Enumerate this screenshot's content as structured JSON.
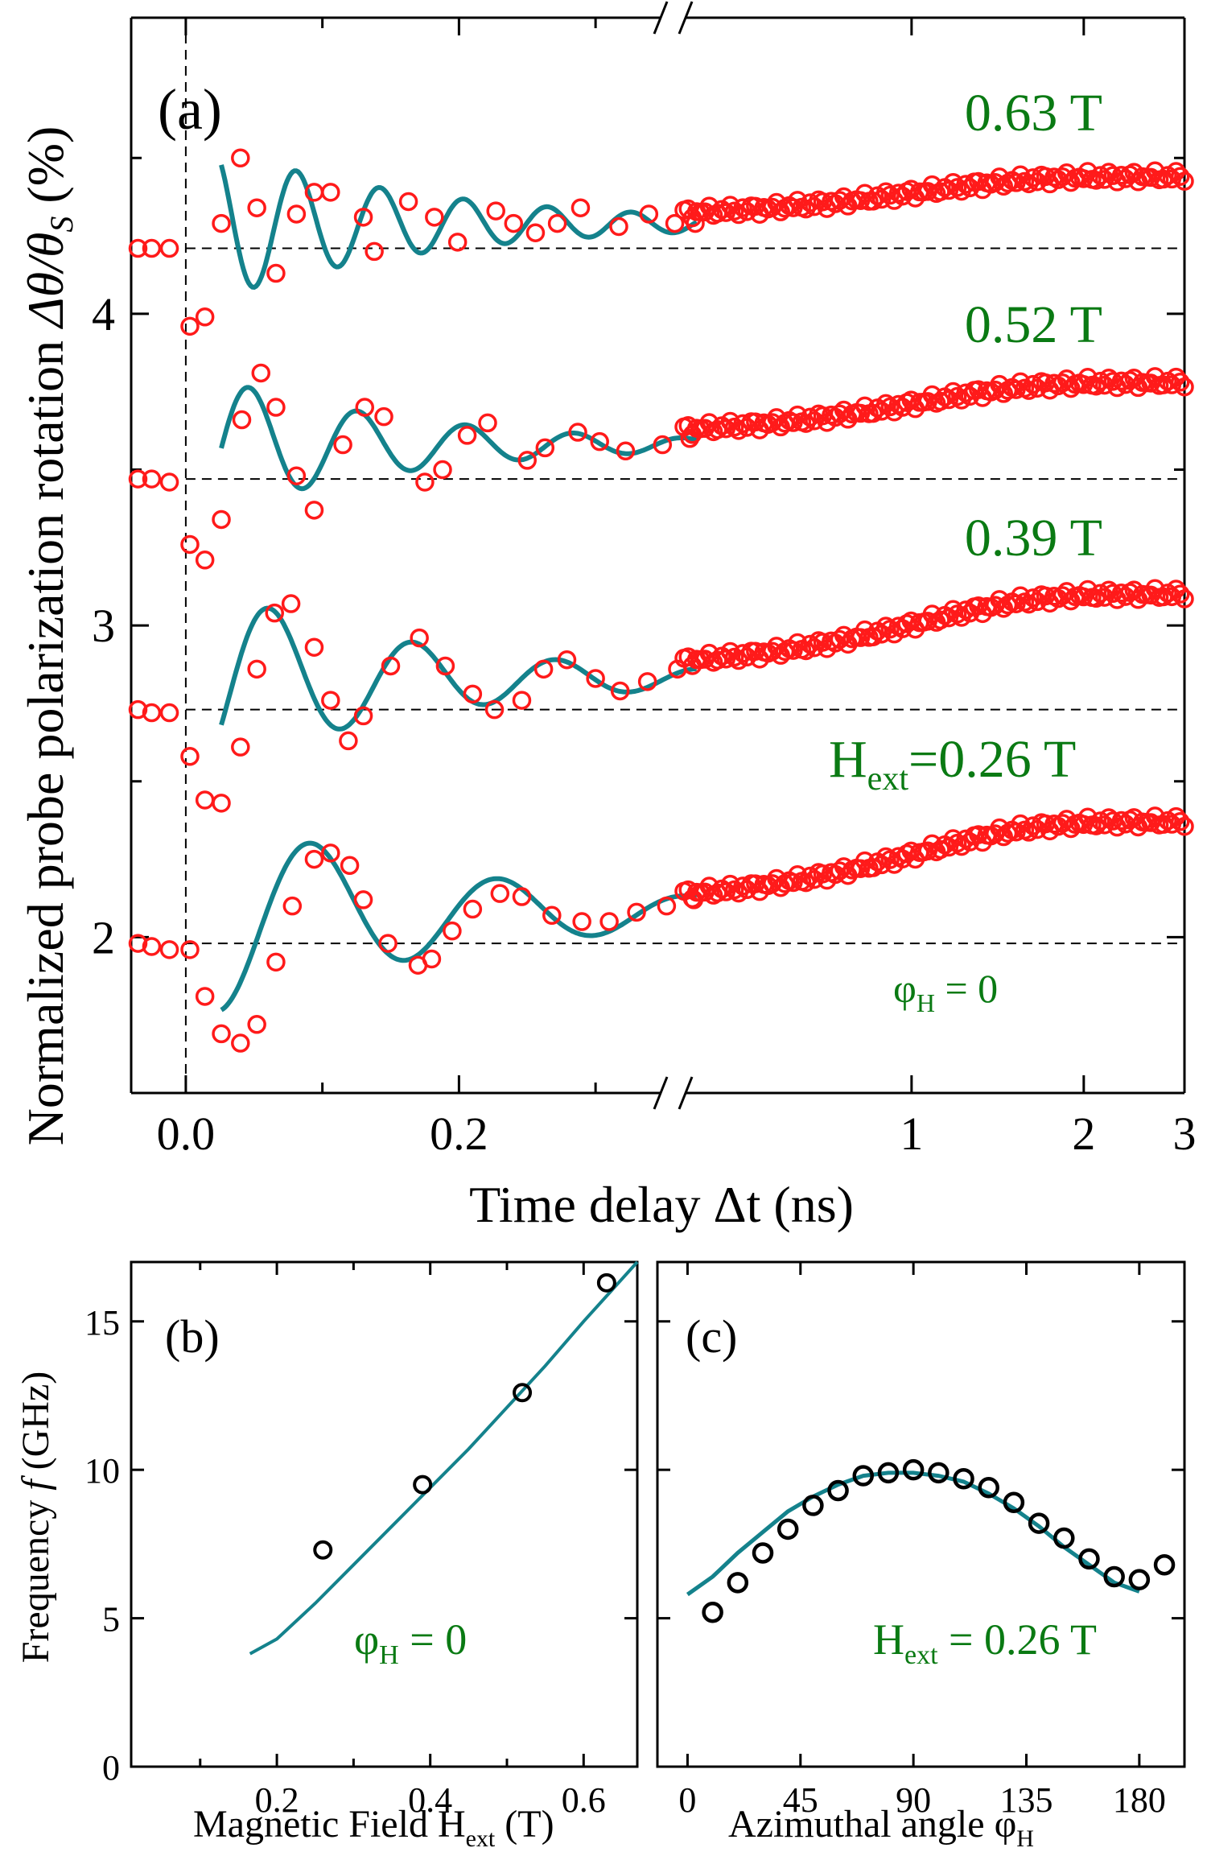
{
  "colors": {
    "data_red": "#ff1a1a",
    "fit_teal": "#14828c",
    "label_green": "#0a7a13",
    "axis": "#000000"
  },
  "chart_data": [
    {
      "id": "a",
      "type": "scatter",
      "panel_label": "(a)",
      "xlabel": "Time delay  Δt (ns)",
      "ylabel": "Normalized probe polarization rotation  Δθ/θ_S (%)",
      "ylabel_main": "Normalized probe polarization rotation  ",
      "ylabel_sym": "Δθ/θ",
      "ylabel_sub": "S",
      "ylabel_unit": " (%)",
      "x_scale": "broken: linear -0.04 to 0.35 ns, then log 0.4 to 3 ns",
      "xlim_left": [
        -0.04,
        0.35
      ],
      "xlim_right": [
        0.4,
        3
      ],
      "ylim": [
        1.5,
        4.95
      ],
      "x_ticks_left": [
        0.0,
        0.2
      ],
      "x_tick_labels_left": [
        "0.0",
        "0.2"
      ],
      "x_ticks_right": [
        1,
        2,
        3
      ],
      "x_tick_labels_right": [
        "1",
        "2",
        "3"
      ],
      "y_ticks": [
        2,
        3,
        4
      ],
      "y_tick_labels": [
        "2",
        "3",
        "4"
      ],
      "annotation_phi": "φ",
      "annotation_phi_sub": "H",
      "annotation_phi_tail": " = 0",
      "series": [
        {
          "name": "0.63 T",
          "label_main": "0.63 T",
          "baseline": 4.21,
          "freq_ghz": 16.3,
          "amp": 0.28,
          "decay_ns": 0.16,
          "fit_offset": 4.29,
          "fit_phase": -2.0,
          "pre": [
            [
              -0.035,
              4.21
            ],
            [
              -0.025,
              4.21
            ],
            [
              -0.012,
              4.21
            ]
          ],
          "rise": [
            [
              0.003,
              3.96
            ],
            [
              0.014,
              3.99
            ]
          ],
          "osc": [
            [
              0.026,
              4.29
            ],
            [
              0.04,
              4.5
            ],
            [
              0.052,
              4.34
            ],
            [
              0.066,
              4.13
            ],
            [
              0.081,
              4.32
            ],
            [
              0.094,
              4.39
            ],
            [
              0.106,
              4.39
            ],
            [
              0.13,
              4.31
            ],
            [
              0.138,
              4.2
            ],
            [
              0.163,
              4.36
            ],
            [
              0.182,
              4.31
            ],
            [
              0.199,
              4.23
            ],
            [
              0.227,
              4.33
            ],
            [
              0.24,
              4.29
            ],
            [
              0.256,
              4.26
            ],
            [
              0.272,
              4.29
            ],
            [
              0.289,
              4.34
            ],
            [
              0.317,
              4.28
            ],
            [
              0.339,
              4.32
            ],
            [
              0.358,
              4.29
            ],
            [
              0.373,
              4.29
            ]
          ],
          "slow_start": 4.31,
          "slow_end": 4.44
        },
        {
          "name": "0.52 T",
          "label_main": "0.52 T",
          "baseline": 3.47,
          "freq_ghz": 12.6,
          "amp": 0.25,
          "decay_ns": 0.15,
          "fit_offset": 3.58,
          "fit_phase": 2.6,
          "pre": [
            [
              -0.035,
              3.47
            ],
            [
              -0.025,
              3.47
            ],
            [
              -0.012,
              3.46
            ]
          ],
          "rise": [
            [
              0.003,
              3.26
            ],
            [
              0.014,
              3.21
            ]
          ],
          "osc": [
            [
              0.026,
              3.34
            ],
            [
              0.041,
              3.66
            ],
            [
              0.055,
              3.81
            ],
            [
              0.066,
              3.7
            ],
            [
              0.081,
              3.48
            ],
            [
              0.094,
              3.37
            ],
            [
              0.115,
              3.58
            ],
            [
              0.131,
              3.7
            ],
            [
              0.145,
              3.67
            ],
            [
              0.175,
              3.46
            ],
            [
              0.188,
              3.5
            ],
            [
              0.206,
              3.61
            ],
            [
              0.221,
              3.65
            ],
            [
              0.25,
              3.53
            ],
            [
              0.263,
              3.57
            ],
            [
              0.287,
              3.62
            ],
            [
              0.303,
              3.59
            ],
            [
              0.322,
              3.56
            ],
            [
              0.349,
              3.58
            ],
            [
              0.369,
              3.6
            ]
          ],
          "slow_start": 3.61,
          "slow_end": 3.78
        },
        {
          "name": "0.39 T",
          "label_main": "0.39 T",
          "baseline": 2.73,
          "freq_ghz": 9.5,
          "amp": 0.33,
          "decay_ns": 0.16,
          "fit_offset": 2.83,
          "fit_phase": 2.6,
          "pre": [
            [
              -0.035,
              2.73
            ],
            [
              -0.025,
              2.72
            ],
            [
              -0.012,
              2.72
            ]
          ],
          "rise": [
            [
              0.003,
              2.58
            ],
            [
              0.014,
              2.44
            ]
          ],
          "osc": [
            [
              0.026,
              2.43
            ],
            [
              0.04,
              2.61
            ],
            [
              0.052,
              2.86
            ],
            [
              0.065,
              3.04
            ],
            [
              0.077,
              3.07
            ],
            [
              0.094,
              2.93
            ],
            [
              0.106,
              2.76
            ],
            [
              0.119,
              2.63
            ],
            [
              0.13,
              2.71
            ],
            [
              0.15,
              2.87
            ],
            [
              0.171,
              2.96
            ],
            [
              0.19,
              2.87
            ],
            [
              0.21,
              2.78
            ],
            [
              0.226,
              2.73
            ],
            [
              0.246,
              2.76
            ],
            [
              0.262,
              2.86
            ],
            [
              0.279,
              2.89
            ],
            [
              0.3,
              2.83
            ],
            [
              0.318,
              2.79
            ],
            [
              0.338,
              2.82
            ],
            [
              0.36,
              2.86
            ],
            [
              0.374,
              2.89
            ]
          ],
          "slow_start": 2.86,
          "slow_end": 3.1
        },
        {
          "name": "H_ext=0.26 T",
          "label_pre": "H",
          "label_sub": "ext",
          "label_main": "=0.26 T",
          "baseline": 1.98,
          "freq_ghz": 7.3,
          "amp": 0.36,
          "decay_ns": 0.19,
          "fit_offset": 2.08,
          "fit_phase": 2.0,
          "pre": [
            [
              -0.035,
              1.98
            ],
            [
              -0.025,
              1.97
            ],
            [
              -0.012,
              1.96
            ]
          ],
          "rise": [
            [
              0.003,
              1.96
            ],
            [
              0.014,
              1.81
            ]
          ],
          "osc": [
            [
              0.026,
              1.69
            ],
            [
              0.04,
              1.66
            ],
            [
              0.052,
              1.72
            ],
            [
              0.066,
              1.92
            ],
            [
              0.078,
              2.1
            ],
            [
              0.094,
              2.25
            ],
            [
              0.106,
              2.27
            ],
            [
              0.12,
              2.23
            ],
            [
              0.13,
              2.12
            ],
            [
              0.148,
              1.98
            ],
            [
              0.17,
              1.91
            ],
            [
              0.18,
              1.93
            ],
            [
              0.195,
              2.02
            ],
            [
              0.21,
              2.09
            ],
            [
              0.23,
              2.14
            ],
            [
              0.246,
              2.13
            ],
            [
              0.268,
              2.07
            ],
            [
              0.29,
              2.05
            ],
            [
              0.31,
              2.05
            ],
            [
              0.33,
              2.08
            ],
            [
              0.352,
              2.1
            ],
            [
              0.372,
              2.12
            ]
          ],
          "slow_start": 2.11,
          "slow_end": 2.37
        }
      ]
    },
    {
      "id": "b",
      "type": "scatter",
      "panel_label": "(b)",
      "xlabel": "Magnetic Field H_ext (T)",
      "xlabel_main": "Magnetic Field H",
      "xlabel_sub": "ext",
      "xlabel_tail": " (T)",
      "ylabel": "Frequency f (GHz)",
      "ylabel_main": "Frequency ",
      "ylabel_italic": "f",
      "ylabel_tail": " (GHz)",
      "xlim": [
        0.01,
        0.67
      ],
      "ylim": [
        0,
        17
      ],
      "x_ticks": [
        0.2,
        0.4,
        0.6
      ],
      "x_tick_labels": [
        "0.2",
        "0.4",
        "0.6"
      ],
      "y_ticks": [
        0,
        5,
        10,
        15
      ],
      "y_tick_labels": [
        "0",
        "5",
        "10",
        "15"
      ],
      "annotation_phi": "φ",
      "annotation_phi_sub": "H",
      "annotation_phi_tail": " = 0",
      "points": {
        "x": [
          0.26,
          0.39,
          0.52,
          0.63
        ],
        "y": [
          7.3,
          9.5,
          12.6,
          16.3
        ]
      },
      "fit": {
        "x": [
          0.165,
          0.2,
          0.25,
          0.3,
          0.35,
          0.4,
          0.45,
          0.5,
          0.55,
          0.6,
          0.67
        ],
        "y": [
          3.8,
          4.3,
          5.5,
          6.8,
          8.1,
          9.4,
          10.7,
          12.1,
          13.5,
          15.0,
          17.0
        ]
      }
    },
    {
      "id": "c",
      "type": "scatter",
      "panel_label": "(c)",
      "xlabel": "Azimuthal angle  φ_H",
      "xlabel_main": "Azimuthal angle  φ",
      "xlabel_sub": "H",
      "xlim": [
        -12,
        198
      ],
      "ylim": [
        0,
        17
      ],
      "x_ticks": [
        0,
        45,
        90,
        135,
        180
      ],
      "x_tick_labels": [
        "0",
        "45",
        "90",
        "135",
        "180"
      ],
      "annotation_h": "H",
      "annotation_h_sub": "ext",
      "annotation_h_tail": " = 0.26 T",
      "points": {
        "x": [
          10,
          20,
          30,
          40,
          50,
          60,
          70,
          80,
          90,
          100,
          110,
          120,
          130,
          140,
          150,
          160,
          170,
          180,
          190
        ],
        "y": [
          5.2,
          6.2,
          7.2,
          8.0,
          8.8,
          9.3,
          9.8,
          9.9,
          10.0,
          9.9,
          9.7,
          9.4,
          8.9,
          8.2,
          7.7,
          7.0,
          6.4,
          6.3,
          6.8
        ]
      },
      "fit": {
        "x": [
          0,
          10,
          20,
          30,
          40,
          50,
          60,
          70,
          80,
          90,
          100,
          110,
          120,
          130,
          140,
          150,
          160,
          170,
          180
        ],
        "y": [
          5.8,
          6.4,
          7.2,
          7.9,
          8.6,
          9.1,
          9.5,
          9.8,
          9.9,
          9.9,
          9.8,
          9.6,
          9.2,
          8.7,
          8.1,
          7.4,
          6.8,
          6.2,
          5.9
        ]
      }
    }
  ]
}
